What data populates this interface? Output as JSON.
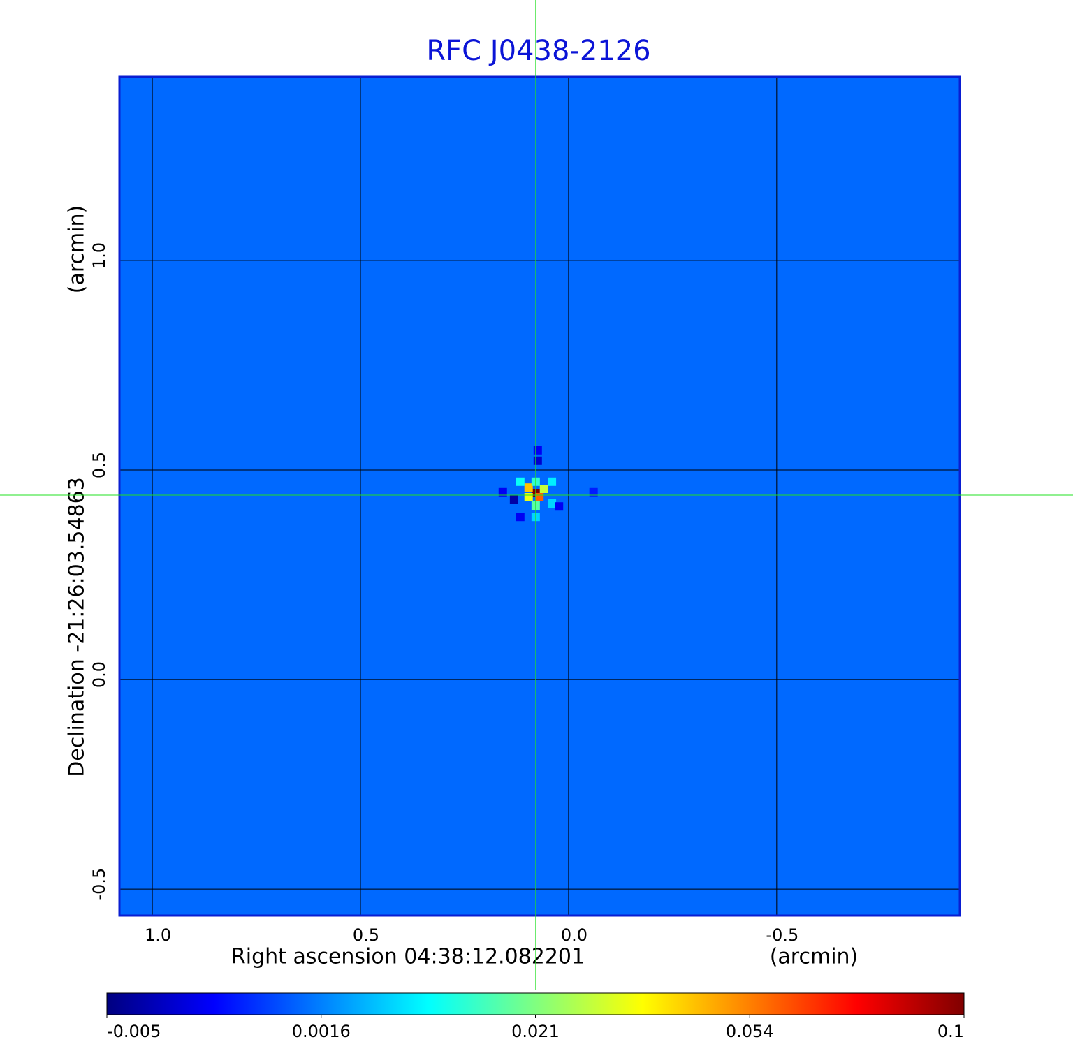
{
  "chart_data": {
    "type": "image",
    "title": "RFC J0438-2126",
    "x_label": "Right ascension  04:38:12.082201",
    "x_unit": "(arcmin)",
    "y_label": "Declination  -21:26:03.54863",
    "y_unit": "(arcmin)",
    "xlim": [
      1.079,
      -0.94
    ],
    "ylim": [
      -0.563,
      1.438
    ],
    "xticks": [
      {
        "value": 1,
        "label": "1.0"
      },
      0.5,
      {
        "value": 0,
        "label": "0.0"
      },
      -0.5
    ],
    "yticks": [
      -0.5,
      {
        "value": 0,
        "label": "0.0"
      },
      0.5,
      {
        "value": 1,
        "label": "1.0"
      }
    ],
    "grid": true,
    "crosshair": [
      0.079,
      0.44
    ],
    "background_value": 0.001,
    "pixels": {
      "x": [
        0.079,
        0.07,
        0.096,
        0.059,
        0.096,
        0.116,
        0.04,
        0.079,
        0.079,
        0.079,
        0.04,
        0.131,
        0.158,
        0.074,
        0.074,
        0.023,
        0.116,
        -0.06
      ],
      "y": [
        0.445,
        0.435,
        0.458,
        0.455,
        0.435,
        0.472,
        0.472,
        0.472,
        0.415,
        0.388,
        0.42,
        0.43,
        0.447,
        0.522,
        0.547,
        0.413,
        0.388,
        0.447
      ],
      "values": [
        0.1,
        0.06,
        0.045,
        0.03,
        0.035,
        0.012,
        0.01,
        0.015,
        0.018,
        0.008,
        0.008,
        -0.004,
        -0.002,
        -0.003,
        -0.002,
        -0.002,
        -0.002,
        -0.001
      ]
    },
    "colormap": [
      "#000080",
      "#0000ff",
      "#0080ff",
      "#00ffff",
      "#80ff80",
      "#ffff00",
      "#ff8000",
      "#ff0000",
      "#800000"
    ],
    "colorbar_ticks": [
      -0.005,
      0.0016,
      0.021,
      0.054,
      0.1
    ]
  }
}
